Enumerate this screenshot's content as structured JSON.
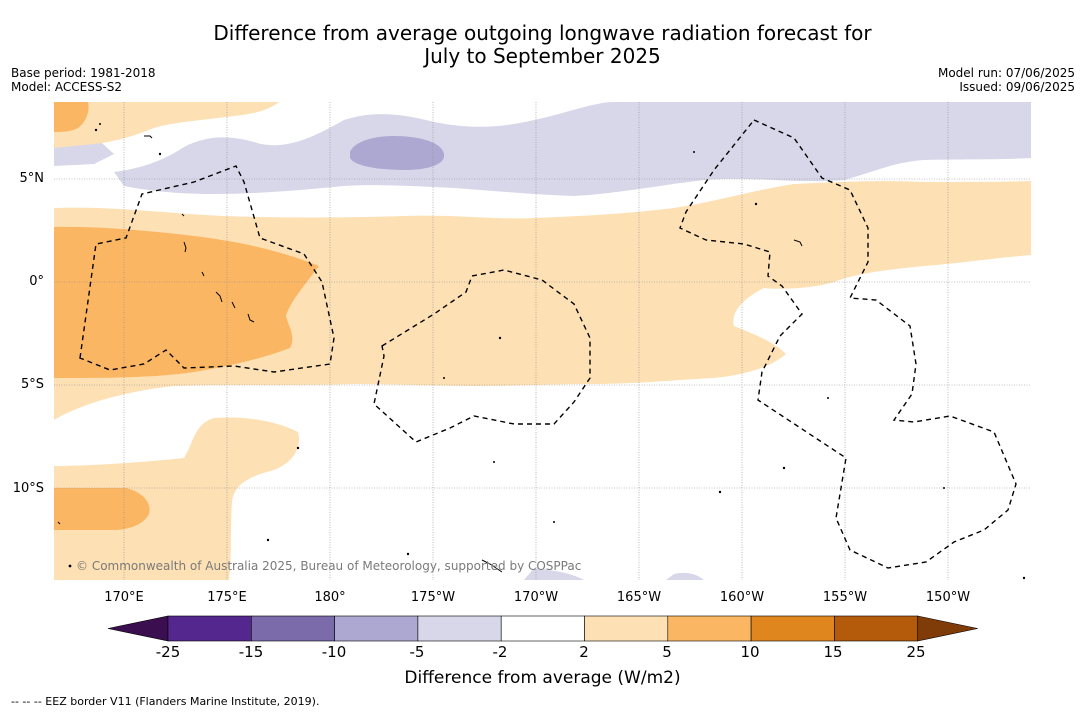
{
  "title_line1": "Difference from average outgoing longwave radiation forecast for",
  "title_line2": "July to September 2025",
  "meta_left": {
    "base_period": "Base period: 1981-2018",
    "model": "Model: ACCESS-S2"
  },
  "meta_right": {
    "model_run": "Model run: 07/06/2025",
    "issued": "Issued: 09/06/2025"
  },
  "lat_labels": [
    "5°N",
    "0°",
    "5°S",
    "10°S"
  ],
  "lon_labels": [
    "170°E",
    "175°E",
    "180°",
    "175°W",
    "170°W",
    "165°W",
    "160°W",
    "155°W",
    "150°W"
  ],
  "copyright": "© Commonwealth of Australia 2025, Bureau of Meteorology, supported by COSPPac",
  "colorbar": {
    "ticks": [
      "-25",
      "-15",
      "-10",
      "-5",
      "-2",
      "2",
      "5",
      "10",
      "15",
      "25"
    ],
    "colors": [
      "#3b0f4f",
      "#54278f",
      "#7b6bab",
      "#ada8d1",
      "#d7d7e9",
      "#ffffff",
      "#fde0b4",
      "#fbb663",
      "#e0861e",
      "#b35a0b",
      "#7f3b08"
    ],
    "label": "Difference from average (W/m2)"
  },
  "eez_note": "--  --  -- EEZ border V11 (Flanders Marine Institute, 2019)."
}
